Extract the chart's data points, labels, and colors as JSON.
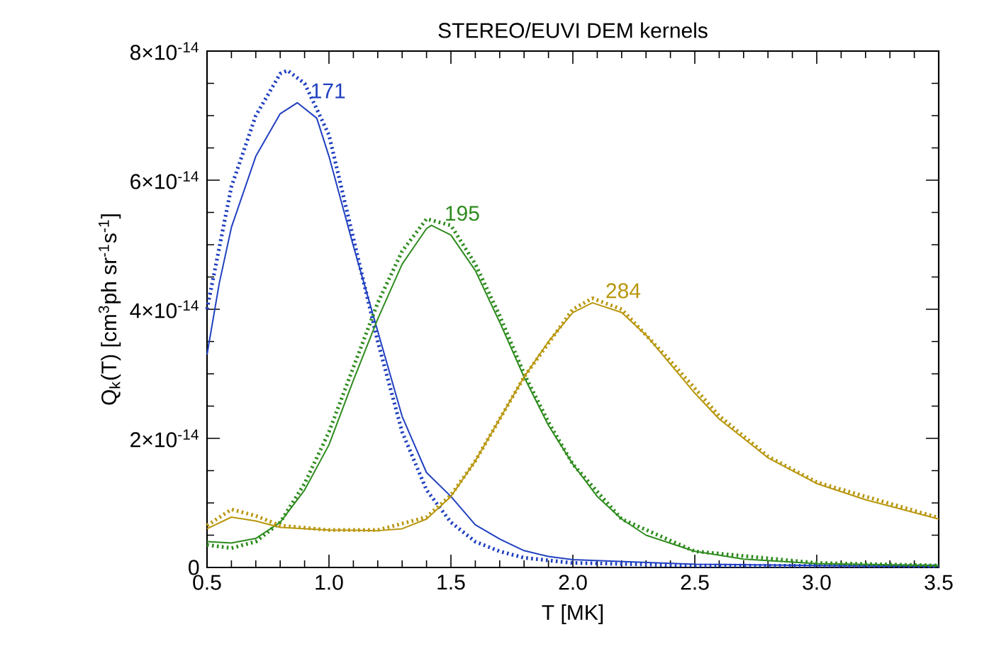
{
  "chart_data": {
    "type": "line",
    "title": "STEREO/EUVI DEM kernels",
    "xlabel": "T [MK]",
    "ylabel": "Q$_{k}$(T) [cm$^{3}$ph sr$^{-1}$s$^{-1}$]",
    "xlim": [
      0.5,
      3.5
    ],
    "xticks": [
      {
        "value": 0.5,
        "label": "0.5"
      },
      {
        "value": 1.0,
        "label": "1.0"
      },
      {
        "value": 1.5,
        "label": "1.5"
      },
      {
        "value": 2.0,
        "label": "2.0"
      },
      {
        "value": 2.5,
        "label": "2.5"
      },
      {
        "value": 3.0,
        "label": "3.0"
      },
      {
        "value": 3.5,
        "label": "3.5"
      }
    ],
    "ylim": [
      0,
      8e-14
    ],
    "yticks": [
      0,
      {
        "value": 2e-14,
        "label": "2×10$^{-14}$"
      },
      {
        "value": 4e-14,
        "label": "4×10$^{-14}$"
      },
      {
        "value": 6e-14,
        "label": "6×10$^{-14}$"
      },
      {
        "value": 8e-14,
        "label": "8×10$^{-14}$"
      }
    ],
    "series": [
      {
        "name": "171",
        "color": "#2040c0",
        "line_style": "solid",
        "x": [
          0.5,
          0.55,
          0.6,
          0.7,
          0.8,
          0.87,
          0.95,
          1.0,
          1.1,
          1.2,
          1.3,
          1.4,
          1.5,
          1.6,
          1.7,
          1.8,
          1.9,
          2.0,
          2.5,
          3.0,
          3.5
        ],
        "values": [
          3.3e-14,
          4.4e-14,
          5.27e-14,
          6.37e-14,
          7.03e-14,
          7.2e-14,
          6.96e-14,
          6.37e-14,
          4.98e-14,
          3.66e-14,
          2.34e-14,
          1.47e-14,
          1.1e-14,
          6.6e-15,
          4.4e-15,
          2.6e-15,
          1.7e-15,
          1.2e-15,
          5e-16,
          3e-16,
          2e-16
        ]
      },
      {
        "color": "#2040c0",
        "line_style": "dotted",
        "x": [
          0.5,
          0.6,
          0.7,
          0.8,
          0.83,
          0.9,
          1.0,
          1.1,
          1.2,
          1.3,
          1.4,
          1.5,
          1.6,
          1.7,
          1.8,
          2.0,
          2.5,
          3.5
        ],
        "values": [
          4e-14,
          5.9e-14,
          7e-14,
          7.65e-14,
          7.7e-14,
          7.5e-14,
          6.7e-14,
          5.1e-14,
          3.5e-14,
          2.1e-14,
          1.2e-14,
          7e-15,
          4e-15,
          2.5e-15,
          1.5e-15,
          7e-16,
          3e-16,
          2e-16
        ]
      },
      {
        "name": "195",
        "color": "#2e8b1e",
        "line_style": "solid",
        "x": [
          0.5,
          0.6,
          0.7,
          0.8,
          0.9,
          1.0,
          1.1,
          1.2,
          1.3,
          1.4,
          1.42,
          1.5,
          1.6,
          1.7,
          1.8,
          1.9,
          2.0,
          2.1,
          2.2,
          2.3,
          2.5,
          2.7,
          3.0,
          3.5
        ],
        "values": [
          4e-15,
          3.8e-15,
          4.5e-15,
          7e-15,
          1.2e-14,
          1.9e-14,
          2.9e-14,
          3.85e-14,
          4.7e-14,
          5.25e-14,
          5.3e-14,
          5.15e-14,
          4.6e-14,
          3.8e-14,
          2.95e-14,
          2.2e-14,
          1.6e-14,
          1.1e-14,
          7.5e-15,
          5e-15,
          2.5e-15,
          1.3e-15,
          6e-16,
          3e-16
        ]
      },
      {
        "color": "#2e8b1e",
        "line_style": "dotted",
        "x": [
          0.5,
          0.6,
          0.7,
          0.8,
          0.9,
          1.0,
          1.1,
          1.2,
          1.3,
          1.4,
          1.5,
          1.6,
          1.7,
          1.8,
          1.9,
          2.0,
          2.2,
          2.5,
          3.0,
          3.5
        ],
        "values": [
          3.5e-15,
          3e-15,
          4e-15,
          7e-15,
          1.3e-14,
          2.1e-14,
          3.1e-14,
          4.1e-14,
          4.9e-14,
          5.4e-14,
          5.3e-14,
          4.7e-14,
          3.9e-14,
          3e-14,
          2.25e-14,
          1.6e-14,
          7.5e-15,
          2.5e-15,
          7e-16,
          3e-16
        ]
      },
      {
        "name": "284",
        "color": "#b8960c",
        "line_style": "solid",
        "x": [
          0.5,
          0.6,
          0.7,
          0.8,
          1.0,
          1.2,
          1.3,
          1.4,
          1.5,
          1.6,
          1.7,
          1.8,
          1.9,
          2.0,
          2.08,
          2.2,
          2.3,
          2.4,
          2.5,
          2.6,
          2.8,
          3.0,
          3.2,
          3.5
        ],
        "values": [
          6e-15,
          7.8e-15,
          7.2e-15,
          6.2e-15,
          5.8e-15,
          5.7e-15,
          6e-15,
          7.5e-15,
          1.1e-14,
          1.65e-14,
          2.3e-14,
          2.95e-14,
          3.5e-14,
          3.95e-14,
          4.1e-14,
          3.95e-14,
          3.6e-14,
          3.15e-14,
          2.7e-14,
          2.3e-14,
          1.7e-14,
          1.3e-14,
          1.05e-14,
          7.5e-15
        ]
      },
      {
        "color": "#b8960c",
        "line_style": "dotted",
        "x": [
          0.5,
          0.6,
          0.7,
          0.8,
          1.0,
          1.2,
          1.4,
          1.5,
          1.6,
          1.8,
          2.0,
          2.08,
          2.2,
          2.4,
          2.6,
          2.8,
          3.0,
          3.5
        ],
        "values": [
          6.5e-15,
          9e-15,
          8e-15,
          6.5e-15,
          5.8e-15,
          5.8e-15,
          7.8e-15,
          1.12e-14,
          1.65e-14,
          2.95e-14,
          4e-14,
          4.17e-14,
          4e-14,
          3.2e-14,
          2.35e-14,
          1.72e-14,
          1.32e-14,
          7.7e-15
        ]
      }
    ]
  }
}
